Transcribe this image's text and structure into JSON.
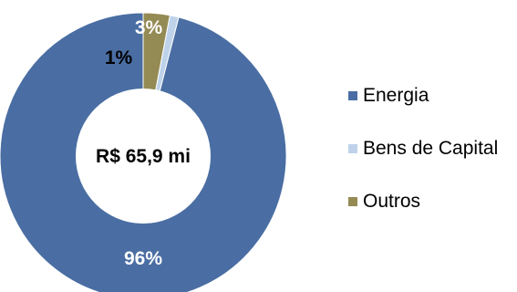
{
  "chart_data": {
    "type": "pie",
    "variant": "donut",
    "center_label": "R$ 65,9 mi",
    "categories": [
      "Energia",
      "Bens de Capital",
      "Outros"
    ],
    "values": [
      96,
      1,
      3
    ],
    "value_labels": [
      "96%",
      "1%",
      "3%"
    ],
    "colors": [
      "#4a6ea3",
      "#bed3ea",
      "#948a54"
    ],
    "legend_position": "right"
  },
  "legend": {
    "items": [
      {
        "label": "Energia",
        "color": "#4a6ea3"
      },
      {
        "label": "Bens de Capital",
        "color": "#bed3ea"
      },
      {
        "label": "Outros",
        "color": "#948a54"
      }
    ]
  }
}
